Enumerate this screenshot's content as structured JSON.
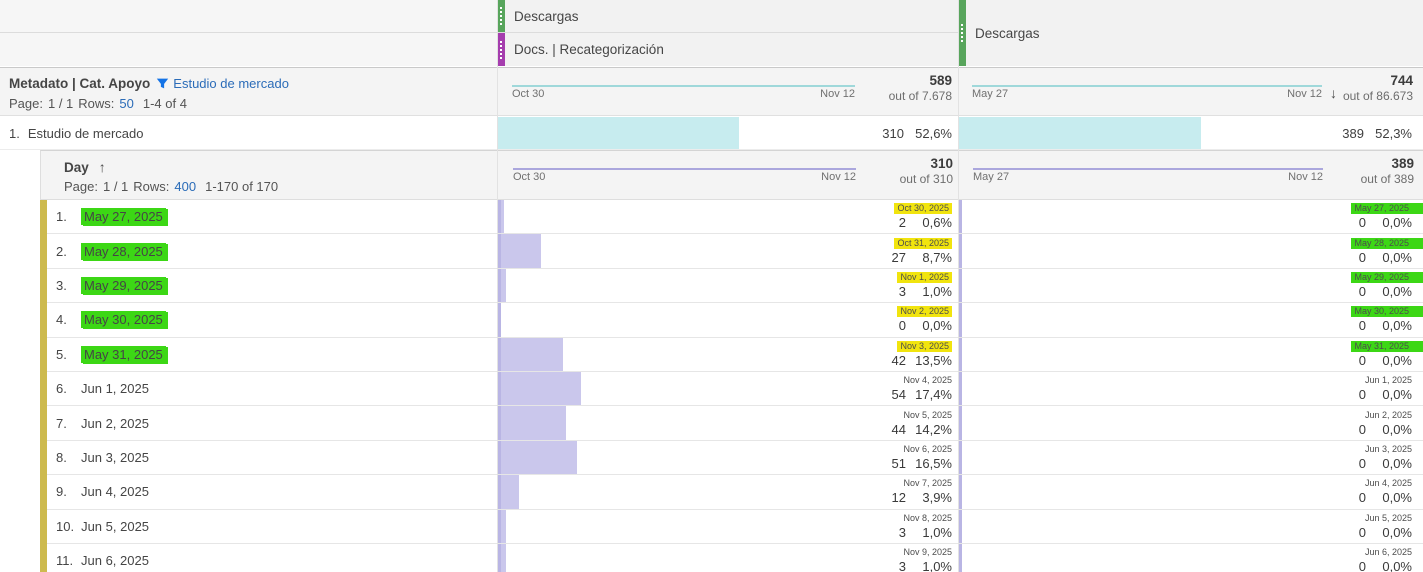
{
  "colors": {
    "accent_green": "#58a55c",
    "accent_magenta": "#a53dae",
    "teal_line": "#9fd8da",
    "teal_bar": "#c7ecef",
    "lavender_line": "#aba7dd",
    "lavender_bar": "#cac7ec",
    "highlight_green": "#3cd715",
    "highlight_yellow": "#f1e40e",
    "link_blue": "#2b6cb8",
    "breakdown_strip": "#cdba4e"
  },
  "metric_headers": {
    "col1_top": "Descargas",
    "col1_bottom": "Docs. | Recategorización",
    "col2": "Descargas"
  },
  "dimension_header": {
    "title": "Metadato | Cat. Apoyo",
    "filter_label": "Estudio de mercado",
    "page_label": "Page:",
    "page_value": "1 / 1",
    "rows_label": "Rows:",
    "rows_value": "50",
    "range": "1-4 of 4"
  },
  "column_summaries": [
    {
      "start": "Oct 30",
      "end": "Nov 12",
      "total": "589",
      "out_of": "out of 7.678"
    },
    {
      "start": "May 27",
      "end": "Nov 12",
      "total": "744",
      "out_of": "out of 86.673",
      "sort_arrow": "↓"
    }
  ],
  "parent_row": {
    "index": "1.",
    "label": "Estudio de mercado",
    "cells": [
      {
        "value": "310",
        "pct": "52,6%",
        "bar_pct": 52.6
      },
      {
        "value": "389",
        "pct": "52,3%",
        "bar_pct": 52.3
      }
    ]
  },
  "breakdown": {
    "dimension": "Day",
    "sort_arrow": "↑",
    "page_label": "Page:",
    "page_value": "1 / 1",
    "rows_label": "Rows:",
    "rows_value": "400",
    "range": "1-170 of 170",
    "column_summaries": [
      {
        "start": "Oct 30",
        "end": "Nov 12",
        "total": "310",
        "out_of": "out of 310"
      },
      {
        "start": "May 27",
        "end": "Nov 12",
        "total": "389",
        "out_of": "out of 389"
      }
    ],
    "rows": [
      {
        "index": "1.",
        "date": "May 27, 2025",
        "highlighted": true,
        "col1": {
          "label": "Oct 30, 2025",
          "value": "2",
          "pct": "0,6%",
          "bar_pct": 0.6
        },
        "col2": {
          "label": "May 27, 2025",
          "value": "0",
          "pct": "0,0%",
          "bar_pct": 0
        }
      },
      {
        "index": "2.",
        "date": "May 28, 2025",
        "highlighted": true,
        "col1": {
          "label": "Oct 31, 2025",
          "value": "27",
          "pct": "8,7%",
          "bar_pct": 8.7
        },
        "col2": {
          "label": "May 28, 2025",
          "value": "0",
          "pct": "0,0%",
          "bar_pct": 0
        }
      },
      {
        "index": "3.",
        "date": "May 29, 2025",
        "highlighted": true,
        "col1": {
          "label": "Nov 1, 2025",
          "value": "3",
          "pct": "1,0%",
          "bar_pct": 1.0
        },
        "col2": {
          "label": "May 29, 2025",
          "value": "0",
          "pct": "0,0%",
          "bar_pct": 0
        }
      },
      {
        "index": "4.",
        "date": "May 30, 2025",
        "highlighted": true,
        "col1": {
          "label": "Nov 2, 2025",
          "value": "0",
          "pct": "0,0%",
          "bar_pct": 0
        },
        "col2": {
          "label": "May 30, 2025",
          "value": "0",
          "pct": "0,0%",
          "bar_pct": 0
        }
      },
      {
        "index": "5.",
        "date": "May 31, 2025",
        "highlighted": true,
        "col1": {
          "label": "Nov 3, 2025",
          "value": "42",
          "pct": "13,5%",
          "bar_pct": 13.5
        },
        "col2": {
          "label": "May 31, 2025",
          "value": "0",
          "pct": "0,0%",
          "bar_pct": 0
        }
      },
      {
        "index": "6.",
        "date": "Jun 1, 2025",
        "highlighted": false,
        "col1": {
          "label": "Nov 4, 2025",
          "value": "54",
          "pct": "17,4%",
          "bar_pct": 17.4
        },
        "col2": {
          "label": "Jun 1, 2025",
          "value": "0",
          "pct": "0,0%",
          "bar_pct": 0
        }
      },
      {
        "index": "7.",
        "date": "Jun 2, 2025",
        "highlighted": false,
        "col1": {
          "label": "Nov 5, 2025",
          "value": "44",
          "pct": "14,2%",
          "bar_pct": 14.2
        },
        "col2": {
          "label": "Jun 2, 2025",
          "value": "0",
          "pct": "0,0%",
          "bar_pct": 0
        }
      },
      {
        "index": "8.",
        "date": "Jun 3, 2025",
        "highlighted": false,
        "col1": {
          "label": "Nov 6, 2025",
          "value": "51",
          "pct": "16,5%",
          "bar_pct": 16.5
        },
        "col2": {
          "label": "Jun 3, 2025",
          "value": "0",
          "pct": "0,0%",
          "bar_pct": 0
        }
      },
      {
        "index": "9.",
        "date": "Jun 4, 2025",
        "highlighted": false,
        "col1": {
          "label": "Nov 7, 2025",
          "value": "12",
          "pct": "3,9%",
          "bar_pct": 3.9
        },
        "col2": {
          "label": "Jun 4, 2025",
          "value": "0",
          "pct": "0,0%",
          "bar_pct": 0
        }
      },
      {
        "index": "10.",
        "date": "Jun 5, 2025",
        "highlighted": false,
        "col1": {
          "label": "Nov 8, 2025",
          "value": "3",
          "pct": "1,0%",
          "bar_pct": 1.0
        },
        "col2": {
          "label": "Jun 5, 2025",
          "value": "0",
          "pct": "0,0%",
          "bar_pct": 0
        }
      },
      {
        "index": "11.",
        "date": "Jun 6, 2025",
        "highlighted": false,
        "col1": {
          "label": "Nov 9, 2025",
          "value": "3",
          "pct": "1,0%",
          "bar_pct": 1.0
        },
        "col2": {
          "label": "Jun 6, 2025",
          "value": "0",
          "pct": "0,0%",
          "bar_pct": 0
        }
      }
    ]
  }
}
